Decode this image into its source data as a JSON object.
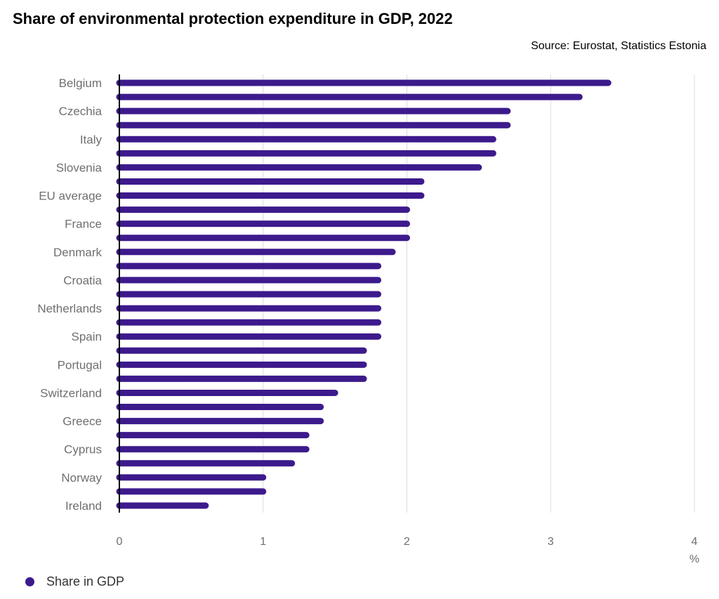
{
  "title": "Share of environmental protection expenditure in GDP, 2022",
  "source": "Source: Eurostat, Statistics Estonia",
  "chart_data": {
    "type": "bar",
    "orientation": "horizontal",
    "title": "Share of environmental protection expenditure in GDP, 2022",
    "xlabel": "%",
    "ylabel": "",
    "xlim": [
      0,
      4
    ],
    "xticks": [
      "0",
      "1",
      "2",
      "3",
      "4"
    ],
    "grid": true,
    "legend_position": "bottom-left",
    "categories": [
      "Belgium",
      "",
      "Czechia",
      "",
      "Italy",
      "",
      "Slovenia",
      "",
      "EU average",
      "",
      "France",
      "",
      "Denmark",
      "",
      "Croatia",
      "",
      "Netherlands",
      "",
      "Spain",
      "",
      "Portugal",
      "",
      "Switzerland",
      "",
      "Greece",
      "",
      "Cyprus",
      "",
      "Norway",
      "",
      "Ireland"
    ],
    "series": [
      {
        "name": "Share in GDP",
        "color": "#3d1a8c",
        "values": [
          3.4,
          3.2,
          2.7,
          2.7,
          2.6,
          2.6,
          2.5,
          2.1,
          2.1,
          2.0,
          2.0,
          2.0,
          1.9,
          1.8,
          1.8,
          1.8,
          1.8,
          1.8,
          1.8,
          1.7,
          1.7,
          1.7,
          1.5,
          1.4,
          1.4,
          1.3,
          1.3,
          1.2,
          1.0,
          1.0,
          0.6
        ]
      }
    ]
  }
}
